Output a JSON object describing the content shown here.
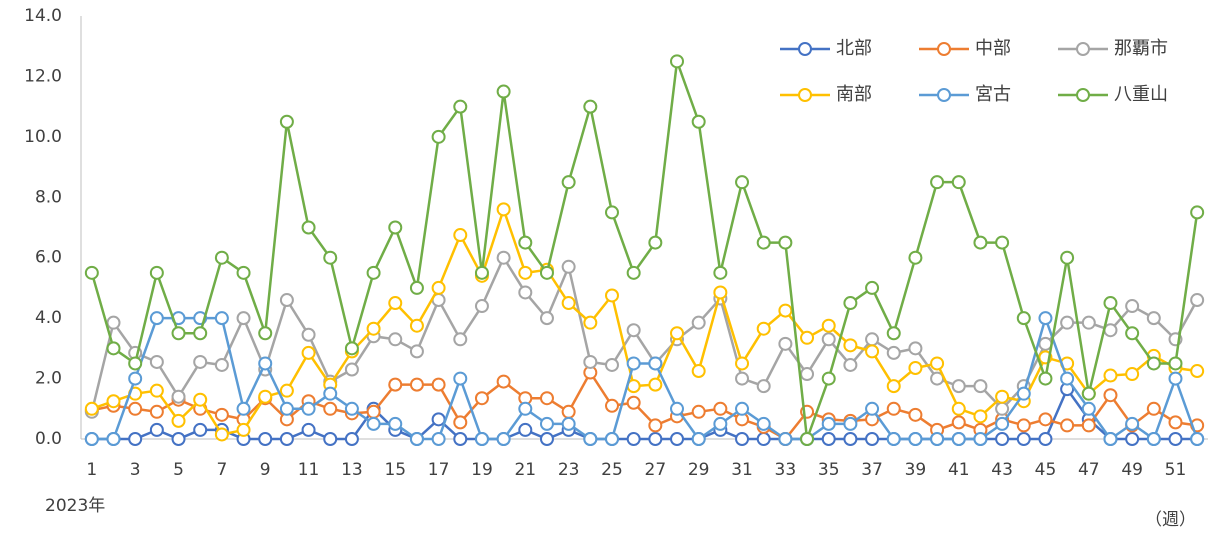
{
  "chart_data": {
    "type": "line",
    "x_note_label": "2023年",
    "x_axis_label": "（週）",
    "categories": [
      1,
      null,
      3,
      null,
      5,
      null,
      7,
      null,
      9,
      null,
      11,
      null,
      13,
      null,
      15,
      null,
      17,
      null,
      19,
      null,
      21,
      null,
      23,
      null,
      25,
      null,
      27,
      null,
      29,
      null,
      31,
      null,
      33,
      null,
      35,
      null,
      37,
      null,
      39,
      null,
      41,
      null,
      43,
      null,
      45,
      null,
      47,
      null,
      49,
      null,
      51,
      null
    ],
    "ylim": [
      0,
      14
    ],
    "yticks": [
      {
        "value": 0,
        "label": "0.0"
      },
      {
        "value": 2,
        "label": "2.0"
      },
      {
        "value": 4,
        "label": "4.0"
      },
      {
        "value": 6,
        "label": "6.0"
      },
      {
        "value": 8,
        "label": "8.0"
      },
      {
        "value": 10,
        "label": "10.0"
      },
      {
        "value": 12,
        "label": "12.0"
      },
      {
        "value": 14,
        "label": "14.0"
      }
    ],
    "grid": false,
    "legend": "top-right",
    "series": [
      {
        "name": "北部",
        "color": "#4472c4",
        "values": [
          0,
          0,
          0,
          0.3,
          0,
          0.3,
          0.3,
          0,
          0,
          0,
          0.3,
          0,
          0,
          1.0,
          0.3,
          0,
          0.65,
          0,
          0,
          0,
          0.3,
          0,
          0.3,
          0,
          0,
          0,
          0,
          0,
          0,
          0.3,
          0,
          0,
          0,
          0,
          0,
          0,
          0,
          0,
          0,
          0,
          0,
          0,
          0,
          0,
          0,
          1.65,
          0.65,
          0,
          0,
          0,
          0,
          0
        ]
      },
      {
        "name": "中部",
        "color": "#ed7d31",
        "values": [
          0.95,
          1.1,
          1.0,
          0.9,
          1.3,
          1.0,
          0.8,
          0.65,
          1.35,
          0.65,
          1.25,
          1.0,
          0.85,
          0.9,
          1.8,
          1.8,
          1.8,
          0.55,
          1.35,
          1.9,
          1.35,
          1.35,
          0.9,
          2.2,
          1.1,
          1.2,
          0.45,
          0.75,
          0.9,
          1.0,
          0.65,
          0.4,
          0,
          0.9,
          0.65,
          0.6,
          0.65,
          1.0,
          0.8,
          0.3,
          0.55,
          0.3,
          0.65,
          0.45,
          0.65,
          0.45,
          0.45,
          1.45,
          0.45,
          1.0,
          0.55,
          0.45
        ]
      },
      {
        "name": "那覇市",
        "color": "#a5a5a5",
        "values": [
          0.9,
          3.85,
          2.85,
          2.55,
          1.4,
          2.55,
          2.45,
          4.0,
          2.3,
          4.6,
          3.45,
          1.9,
          2.3,
          3.4,
          3.3,
          2.9,
          4.6,
          3.3,
          4.4,
          6.0,
          4.85,
          4.0,
          5.7,
          2.55,
          2.45,
          3.6,
          2.5,
          3.3,
          3.85,
          4.65,
          2.0,
          1.75,
          3.15,
          2.15,
          3.3,
          2.45,
          3.3,
          2.85,
          3.0,
          2.0,
          1.75,
          1.75,
          1.0,
          1.75,
          3.15,
          3.85,
          3.85,
          3.6,
          4.4,
          4.0,
          3.3,
          4.6
        ]
      },
      {
        "name": "南部",
        "color": "#ffc000",
        "values": [
          1.0,
          1.25,
          1.5,
          1.6,
          0.6,
          1.3,
          0.15,
          0.3,
          1.4,
          1.6,
          2.85,
          1.8,
          2.9,
          3.65,
          4.5,
          3.75,
          5.0,
          6.75,
          5.4,
          7.6,
          5.5,
          5.6,
          4.5,
          3.85,
          4.75,
          1.75,
          1.8,
          3.5,
          2.25,
          4.85,
          2.5,
          3.65,
          4.25,
          3.35,
          3.75,
          3.1,
          2.9,
          1.75,
          2.35,
          2.5,
          1.0,
          0.75,
          1.4,
          1.25,
          2.7,
          2.5,
          1.5,
          2.1,
          2.15,
          2.75,
          2.35,
          2.25
        ]
      },
      {
        "name": "宮古",
        "color": "#5b9bd5",
        "values": [
          0,
          0,
          2.0,
          4.0,
          4.0,
          4.0,
          4.0,
          1.0,
          2.5,
          1.0,
          1.0,
          1.5,
          1.0,
          0.5,
          0.5,
          0,
          0,
          2.0,
          0,
          0,
          1.0,
          0.5,
          0.5,
          0,
          0,
          2.5,
          2.5,
          1.0,
          0,
          0.5,
          1.0,
          0.5,
          0,
          0,
          0.5,
          0.5,
          1.0,
          0,
          0,
          0,
          0,
          0,
          0.5,
          1.5,
          4.0,
          2.0,
          1.0,
          0,
          0.5,
          0,
          2.0,
          0
        ]
      },
      {
        "name": "八重山",
        "color": "#70ad47",
        "values": [
          5.5,
          3.0,
          2.5,
          5.5,
          3.5,
          3.5,
          6.0,
          5.5,
          3.5,
          10.5,
          7.0,
          6.0,
          3.0,
          5.5,
          7.0,
          5.0,
          10.0,
          11.0,
          5.5,
          11.5,
          6.5,
          5.5,
          8.5,
          11.0,
          7.5,
          5.5,
          6.5,
          12.5,
          10.5,
          5.5,
          8.5,
          6.5,
          6.5,
          0,
          2.0,
          4.5,
          5.0,
          3.5,
          6.0,
          8.5,
          8.5,
          6.5,
          6.5,
          4.0,
          2.0,
          6.0,
          1.5,
          4.5,
          3.5,
          2.5,
          2.5,
          7.5
        ]
      }
    ]
  }
}
